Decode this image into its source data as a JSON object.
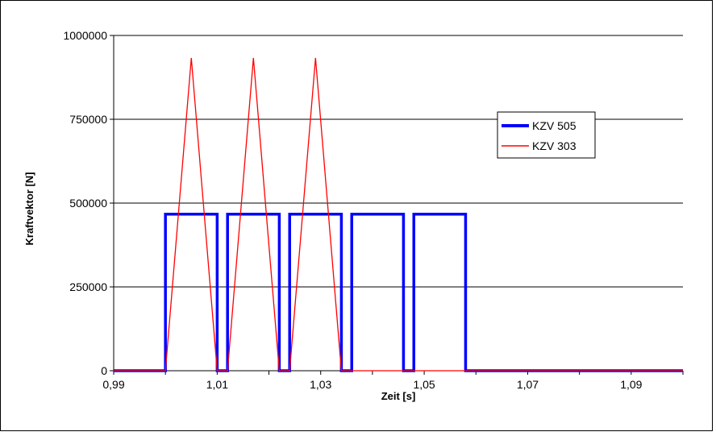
{
  "chart_data": {
    "type": "line",
    "title": "",
    "xlabel": "Zeit [s]",
    "ylabel": "Kraftvektor [N]",
    "xlim": [
      0.99,
      1.1
    ],
    "ylim": [
      0,
      1000000
    ],
    "x_ticks": [
      0.99,
      1.01,
      1.03,
      1.05,
      1.07,
      1.09
    ],
    "x_tick_labels": [
      "0,99",
      "1,01",
      "1,03",
      "1,05",
      "1,07",
      "1,09"
    ],
    "y_ticks": [
      0,
      250000,
      500000,
      750000,
      1000000
    ],
    "y_tick_labels": [
      "0",
      "250000",
      "500000",
      "750000",
      "1000000"
    ],
    "grid": "horizontal",
    "legend_position": "right",
    "series": [
      {
        "name": "KZV 505",
        "color": "#0000ff",
        "points": [
          [
            0.99,
            0
          ],
          [
            1.0,
            0
          ],
          [
            1.0,
            467000
          ],
          [
            1.01,
            467000
          ],
          [
            1.01,
            0
          ],
          [
            1.012,
            0
          ],
          [
            1.012,
            467000
          ],
          [
            1.022,
            467000
          ],
          [
            1.022,
            0
          ],
          [
            1.024,
            0
          ],
          [
            1.024,
            467000
          ],
          [
            1.034,
            467000
          ],
          [
            1.034,
            0
          ],
          [
            1.036,
            0
          ],
          [
            1.036,
            467000
          ],
          [
            1.046,
            467000
          ],
          [
            1.046,
            0
          ],
          [
            1.048,
            0
          ],
          [
            1.048,
            467000
          ],
          [
            1.058,
            467000
          ],
          [
            1.058,
            0
          ],
          [
            1.1,
            0
          ]
        ]
      },
      {
        "name": "KZV 303",
        "color": "#ff0000",
        "points": [
          [
            0.99,
            0
          ],
          [
            1.0,
            0
          ],
          [
            1.005,
            933000
          ],
          [
            1.01,
            0
          ],
          [
            1.012,
            0
          ],
          [
            1.017,
            933000
          ],
          [
            1.022,
            0
          ],
          [
            1.024,
            0
          ],
          [
            1.029,
            933000
          ],
          [
            1.034,
            0
          ],
          [
            1.1,
            0
          ]
        ]
      }
    ]
  }
}
